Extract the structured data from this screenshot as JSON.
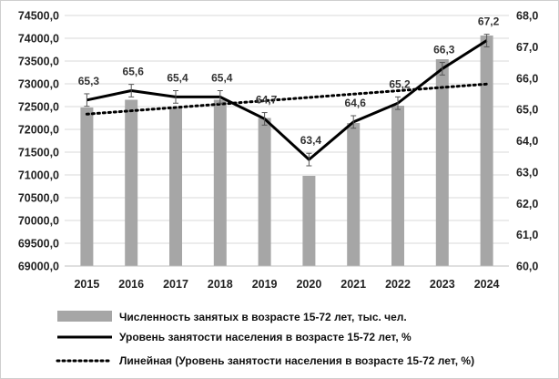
{
  "chart_data": {
    "type": "bar",
    "title": "",
    "categories": [
      "2015",
      "2016",
      "2017",
      "2018",
      "2019",
      "2020",
      "2021",
      "2022",
      "2023",
      "2024"
    ],
    "series": [
      {
        "name": "Численность занятых в возрасте 15-72 лет, тыс. чел.",
        "type": "bar",
        "axis": "left",
        "color": "#a6a6a6",
        "values": [
          72480,
          72650,
          72470,
          72650,
          72250,
          70980,
          72140,
          72520,
          73540,
          74060
        ]
      },
      {
        "name": "Уровень занятости населения в возрасте 15-72 лет, %",
        "type": "line",
        "axis": "right",
        "color": "#000000",
        "values": [
          65.3,
          65.6,
          65.4,
          65.4,
          64.7,
          63.4,
          64.6,
          65.2,
          66.3,
          67.2
        ],
        "labels": [
          "65,3",
          "65,6",
          "65,4",
          "65,4",
          "64,7",
          "63,4",
          "64,6",
          "65,2",
          "66,3",
          "67,2"
        ],
        "error_bar": 0.2
      },
      {
        "name": "Линейная (Уровень занятости населения в возрасте 15-72 лет, %)",
        "type": "trendline",
        "axis": "right",
        "color": "#000000",
        "values": [
          64.85,
          64.96,
          65.06,
          65.17,
          65.28,
          65.38,
          65.49,
          65.59,
          65.7,
          65.81
        ]
      }
    ],
    "y_left": {
      "min": 69000,
      "max": 74500,
      "step": 500,
      "tick_labels": [
        "69000,0",
        "69500,0",
        "70000,0",
        "70500,0",
        "71000,0",
        "71500,0",
        "72000,0",
        "72500,0",
        "73000,0",
        "73500,0",
        "74000,0",
        "74500,0"
      ]
    },
    "y_right": {
      "min": 60.0,
      "max": 68.0,
      "step": 1.0,
      "tick_labels": [
        "60,0",
        "61,0",
        "62,0",
        "63,0",
        "64,0",
        "65,0",
        "66,0",
        "67,0",
        "68,0"
      ]
    },
    "grid": true,
    "legend_position": "bottom"
  }
}
